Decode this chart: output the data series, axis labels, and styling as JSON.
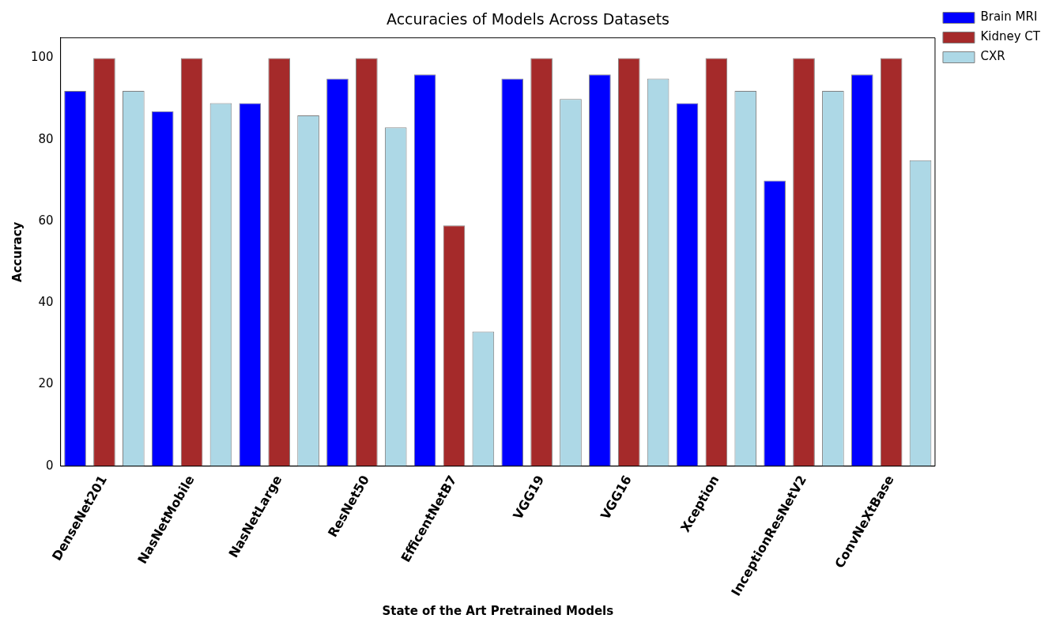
{
  "chart_data": {
    "type": "bar",
    "title": "Accuracies of Models Across Datasets",
    "xlabel": "State of the Art Pretrained Models",
    "ylabel": "Accuracy",
    "categories": [
      "DenseNet201",
      "NasNetMobile",
      "NasNetLarge",
      "ResNet50",
      "EfficentNetB7",
      "VGG19",
      "VGG16",
      "Xception",
      "InceptionResNetV2",
      "ConvNeXtBase"
    ],
    "series": [
      {
        "name": "Brain MRI",
        "color": "#0000ff",
        "values": [
          92,
          87,
          89,
          95,
          96,
          95,
          96,
          89,
          70,
          96
        ]
      },
      {
        "name": "Kidney CT",
        "color": "#a52a2a",
        "values": [
          100,
          100,
          100,
          100,
          59,
          100,
          100,
          100,
          100,
          100
        ]
      },
      {
        "name": "CXR",
        "color": "#add8e6",
        "values": [
          92,
          89,
          86,
          83,
          33,
          90,
          95,
          92,
          92,
          75
        ]
      }
    ],
    "ylim": [
      0,
      105
    ],
    "yticks": [
      0,
      20,
      40,
      60,
      80,
      100
    ],
    "grid": false,
    "legend": "right"
  }
}
